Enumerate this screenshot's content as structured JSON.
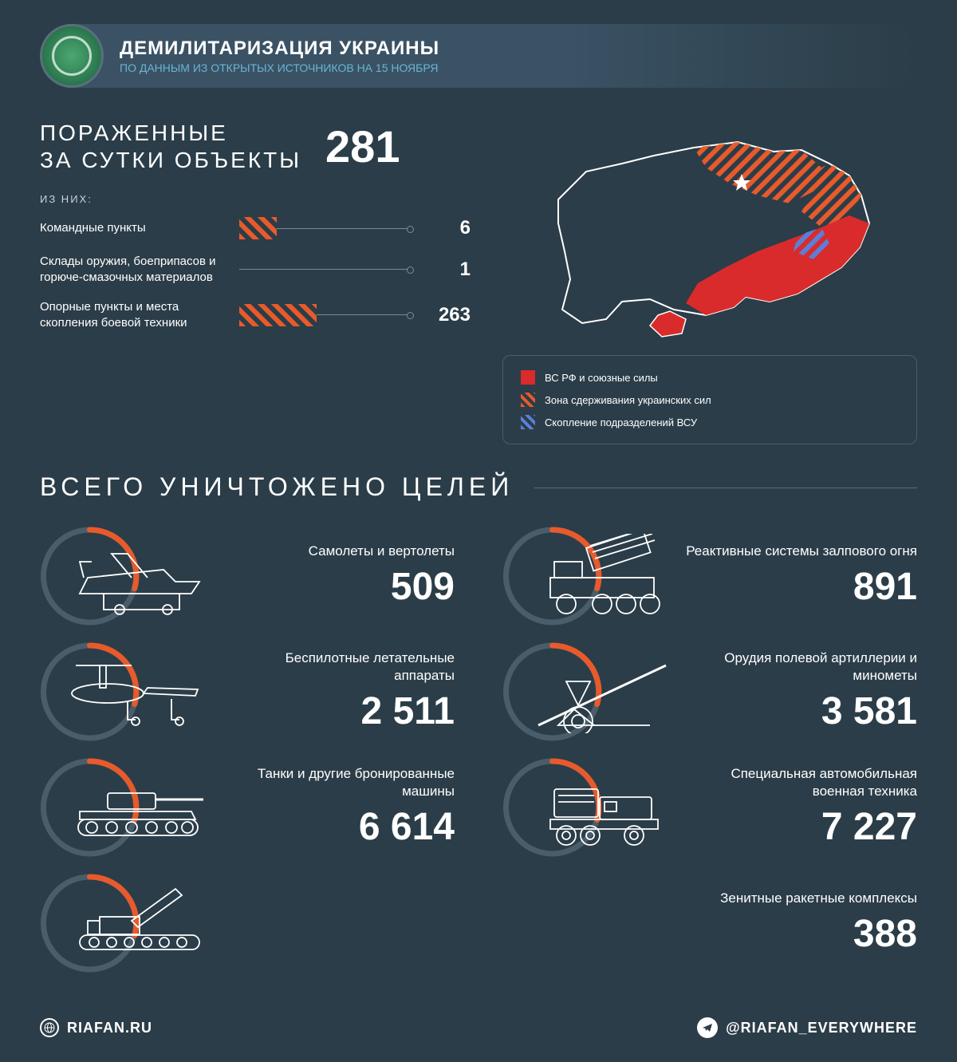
{
  "colors": {
    "bg": "#2b3d48",
    "accent": "#e85a2b",
    "red": "#d92b2b",
    "blue": "#5b7fd9",
    "cyan": "#6bb4d4",
    "line": "#7a8b95",
    "ring_bg": "#4a5d6a"
  },
  "header": {
    "title": "ДЕМИЛИТАРИЗАЦИЯ УКРАИНЫ",
    "subtitle": "ПО ДАННЫМ ИЗ ОТКРЫТЫХ ИСТОЧНИКОВ НА 15 НОЯБРЯ"
  },
  "daily": {
    "title_line1": "ПОРАЖЕННЫЕ",
    "title_line2": "ЗА СУТКИ ОБЪЕКТЫ",
    "total": "281",
    "of_them": "ИЗ НИХ:",
    "bars": [
      {
        "label": "Командные пункты",
        "value": "6",
        "fill_pct": 22
      },
      {
        "label": "Склады оружия, боеприпасов и горюче-смазочных материалов",
        "value": "1",
        "fill_pct": 0
      },
      {
        "label": "Опорные пункты и места скопления боевой техники",
        "value": "263",
        "fill_pct": 45
      }
    ]
  },
  "legend": [
    {
      "swatch": "sw-red",
      "label": "ВС РФ и союзные силы"
    },
    {
      "swatch": "sw-orange",
      "label": "Зона сдерживания украинских сил"
    },
    {
      "swatch": "sw-blue",
      "label": "Скопление подразделений ВСУ"
    }
  ],
  "totals_title": "ВСЕГО УНИЧТОЖЕНО ЦЕЛЕЙ",
  "stats": [
    {
      "label": "Самолеты и вертолеты",
      "value": "509",
      "icon": "aircraft"
    },
    {
      "label": "Реактивные системы залпового огня",
      "value": "891",
      "icon": "mlrs"
    },
    {
      "label": "Беспилотные летательные аппараты",
      "value": "2 511",
      "icon": "drone"
    },
    {
      "label": "Орудия полевой артиллерии и минометы",
      "value": "3 581",
      "icon": "artillery"
    },
    {
      "label": "Танки и другие бронированные машины",
      "value": "6 614",
      "icon": "tank"
    },
    {
      "label": "Специальная автомобильная военная техника",
      "value": "7 227",
      "icon": "truck"
    },
    {
      "label": "Зенитные ракетные комплексы",
      "value": "388",
      "icon": "sam",
      "center": true
    }
  ],
  "footer": {
    "site": "RIAFAN.RU",
    "telegram": "@RIAFAN_EVERYWHERE"
  }
}
